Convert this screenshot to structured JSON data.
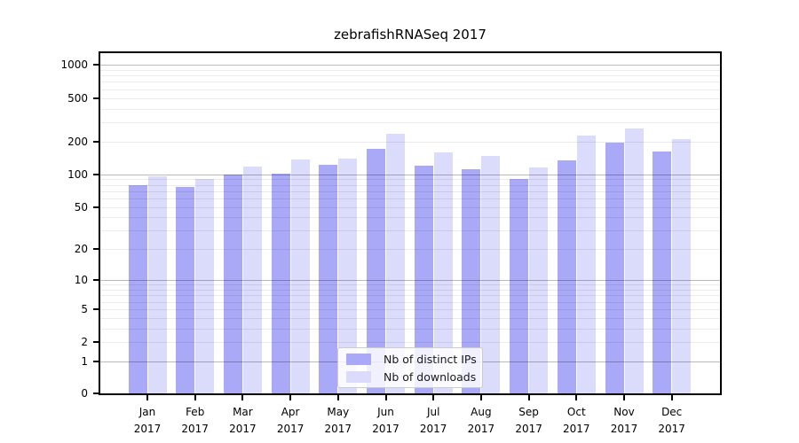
{
  "chart_data": {
    "type": "bar",
    "title": "zebrafishRNASeq 2017",
    "categories": [
      "Jan 2017",
      "Feb 2017",
      "Mar 2017",
      "Apr 2017",
      "May 2017",
      "Jun 2017",
      "Jul 2017",
      "Aug 2017",
      "Sep 2017",
      "Oct 2017",
      "Nov 2017",
      "Dec 2017"
    ],
    "series": [
      {
        "name": "Nb of distinct IPs",
        "color": "#a9a9f7",
        "values": [
          80,
          76,
          100,
          102,
          123,
          170,
          121,
          111,
          91,
          135,
          196,
          163
        ]
      },
      {
        "name": "Nb of downloads",
        "color": "#dbdbfb",
        "values": [
          95,
          90,
          117,
          137,
          139,
          235,
          160,
          148,
          115,
          228,
          263,
          211
        ]
      }
    ],
    "xlabel": "",
    "ylabel": "",
    "yscale": "symlog (log1p), linear below 1",
    "yticks": [
      0,
      1,
      2,
      5,
      10,
      20,
      50,
      100,
      200,
      500,
      1000
    ],
    "major_grid_values": [
      1,
      10,
      100,
      1000
    ],
    "minor_grid_values": [
      2,
      3,
      4,
      5,
      6,
      7,
      8,
      9,
      20,
      30,
      40,
      50,
      60,
      70,
      80,
      90,
      200,
      300,
      400,
      500,
      600,
      700,
      800,
      900
    ],
    "ylim": [
      0,
      1300
    ],
    "grid": "horizontal, major + minor, drawn over bars",
    "legend_position": "lower center"
  },
  "colors": {
    "ips_bar": "#a9a9f7",
    "downloads_bar": "#dbdbfb",
    "grid_major": "rgba(0,0,0,0.27)",
    "grid_minor": "rgba(0,0,0,0.08)",
    "spine": "#000000",
    "legend_border": "#cbcbcb"
  }
}
